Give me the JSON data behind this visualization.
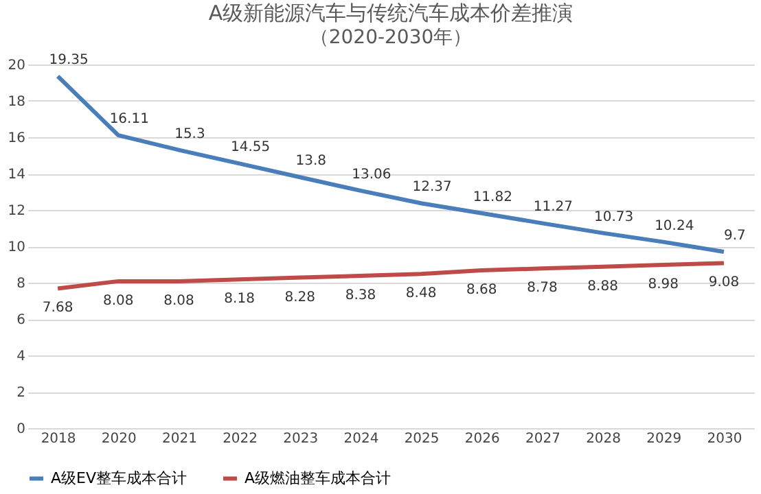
{
  "chart_data": {
    "type": "line",
    "title": "A级新能源汽车与传统汽车成本价差推演",
    "subtitle": "（2020-2030年）",
    "categories": [
      "2018",
      "2020",
      "2021",
      "2022",
      "2023",
      "2024",
      "2025",
      "2026",
      "2027",
      "2028",
      "2029",
      "2030"
    ],
    "series": [
      {
        "name": "A级EV整车成本合计",
        "color": "#4a7ebb",
        "values": [
          19.35,
          16.11,
          15.3,
          14.55,
          13.8,
          13.06,
          12.37,
          11.82,
          11.27,
          10.73,
          10.24,
          9.7
        ]
      },
      {
        "name": "A级燃油整车成本合计",
        "color": "#be4b48",
        "values": [
          7.68,
          8.08,
          8.08,
          8.18,
          8.28,
          8.38,
          8.48,
          8.68,
          8.78,
          8.88,
          8.98,
          9.08
        ]
      }
    ],
    "ylim": [
      0,
      20
    ],
    "yticks": [
      0,
      2,
      4,
      6,
      8,
      10,
      12,
      14,
      16,
      18,
      20
    ],
    "grid": "y",
    "legend": "bottom",
    "data_labels": true,
    "marker": "none",
    "line_style": "solid"
  }
}
